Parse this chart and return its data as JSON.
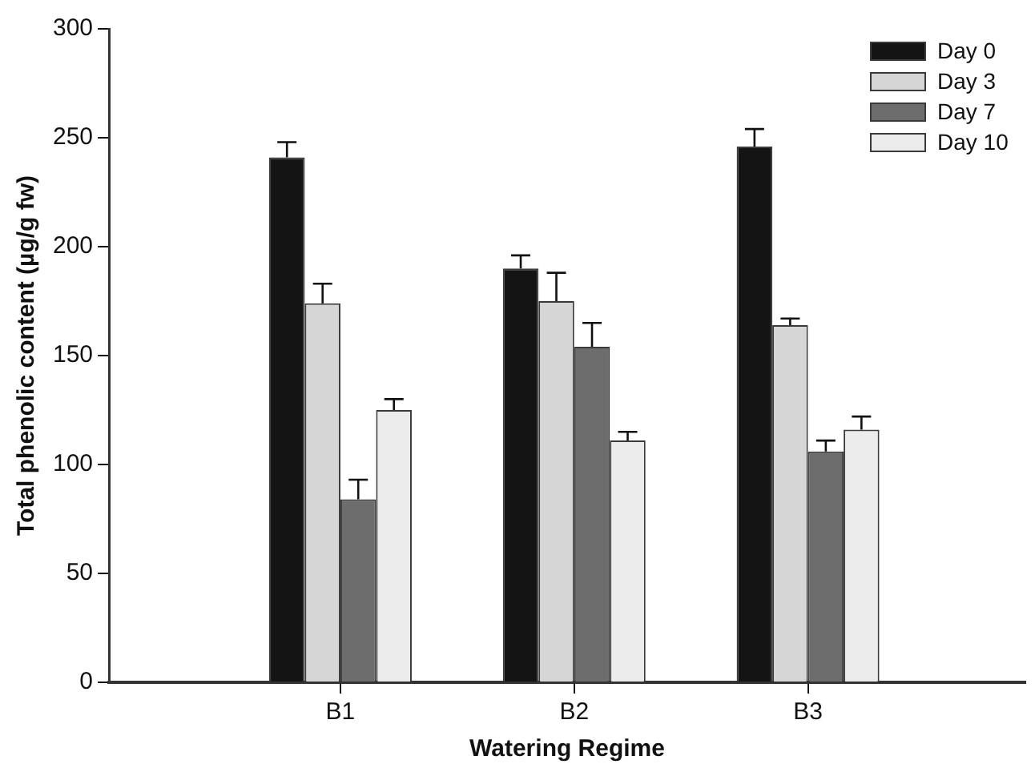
{
  "chart_data": {
    "type": "bar",
    "xlabel": "Watering Regime",
    "ylabel": "Total phenolic content (µg/g fw)",
    "categories": [
      "B1",
      "B2",
      "B3"
    ],
    "series": [
      {
        "name": "Day 0",
        "color": "#141414",
        "values": [
          241,
          190,
          246
        ],
        "errors": [
          [
            241,
            248
          ],
          [
            190,
            196
          ],
          [
            246,
            254
          ]
        ]
      },
      {
        "name": "Day 3",
        "color": "#d6d6d6",
        "values": [
          174,
          175,
          164
        ],
        "errors": [
          [
            174,
            183
          ],
          [
            175,
            188
          ],
          [
            164,
            167
          ]
        ]
      },
      {
        "name": "Day 7",
        "color": "#6d6d6d",
        "values": [
          84,
          154,
          106
        ],
        "errors": [
          [
            84,
            93
          ],
          [
            154,
            165
          ],
          [
            106,
            111
          ]
        ]
      },
      {
        "name": "Day 10",
        "color": "#ececec",
        "values": [
          125,
          111,
          116
        ],
        "errors": [
          [
            125,
            130
          ],
          [
            111,
            115
          ],
          [
            116,
            122
          ]
        ]
      }
    ],
    "ylim": [
      0,
      300
    ],
    "yticks": [
      0,
      50,
      100,
      150,
      200,
      250,
      300
    ],
    "grid": false,
    "legend": "top right"
  }
}
